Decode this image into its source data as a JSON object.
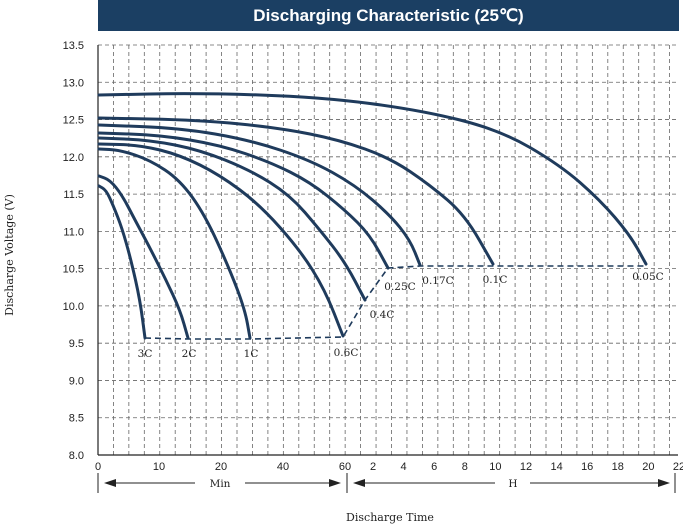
{
  "colors": {
    "title_bg": "#1b3f63",
    "curve": "#1f3b5c",
    "grid": "#666666"
  },
  "chart_data": {
    "type": "line",
    "title": "Discharging Characteristic (25℃)",
    "ylabel": "Discharge Voltage (V)",
    "xlabel": "Discharge Time",
    "ylim": [
      8.0,
      13.5
    ],
    "y_ticks": [
      "13.5",
      "13.0",
      "12.5",
      "12.0",
      "11.5",
      "11.0",
      "10.5",
      "10.0",
      "9.5",
      "9.0",
      "8.5",
      "8.0"
    ],
    "x_ticks_min": [
      "0",
      "10",
      "20",
      "40",
      "60"
    ],
    "x_ticks_h": [
      "2",
      "4",
      "6",
      "8",
      "10",
      "12",
      "14",
      "16",
      "18",
      "20",
      "22"
    ],
    "x_segment_labels": {
      "min": "Min",
      "hour": "H"
    },
    "grid": true,
    "series": [
      {
        "name": "3C",
        "points": [
          [
            0,
            11.62
          ],
          [
            1,
            11.6
          ],
          [
            2,
            11.4
          ],
          [
            3,
            11.0
          ],
          [
            4,
            10.3
          ],
          [
            5,
            9.7
          ],
          [
            6,
            9.57
          ]
        ]
      },
      {
        "name": "2C",
        "points": [
          [
            0,
            11.75
          ],
          [
            2,
            11.65
          ],
          [
            4,
            11.35
          ],
          [
            6,
            11.0
          ],
          [
            8,
            10.6
          ],
          [
            10,
            10.1
          ],
          [
            11,
            9.8
          ],
          [
            12,
            9.57
          ]
        ]
      },
      {
        "name": "1C",
        "points": [
          [
            0,
            12.1
          ],
          [
            5,
            12.05
          ],
          [
            10,
            11.8
          ],
          [
            15,
            11.3
          ],
          [
            20,
            10.7
          ],
          [
            25,
            10.1
          ],
          [
            28,
            9.57
          ]
        ]
      },
      {
        "name": "0.6C",
        "points": [
          [
            0,
            12.18
          ],
          [
            10,
            12.1
          ],
          [
            20,
            11.8
          ],
          [
            30,
            11.3
          ],
          [
            40,
            10.8
          ],
          [
            50,
            10.2
          ],
          [
            60,
            9.57
          ]
        ]
      },
      {
        "name": "0.4C",
        "points": [
          [
            0,
            12.22
          ],
          [
            0.5,
            12.1
          ],
          [
            1,
            11.9
          ],
          [
            1.5,
            11.6
          ],
          [
            2,
            11.0
          ],
          [
            2.5,
            10.4
          ],
          [
            3,
            10.0
          ]
        ]
      },
      {
        "name": "0.25C",
        "points": [
          [
            0,
            12.27
          ],
          [
            1,
            12.05
          ],
          [
            2,
            11.7
          ],
          [
            3,
            11.2
          ],
          [
            4,
            10.55
          ]
        ]
      },
      {
        "name": "0.17C",
        "points": [
          [
            0,
            12.33
          ],
          [
            1,
            12.2
          ],
          [
            2,
            12.0
          ],
          [
            3,
            11.7
          ],
          [
            4,
            11.3
          ],
          [
            5,
            10.85
          ],
          [
            6,
            10.55
          ]
        ]
      },
      {
        "name": "0.1C",
        "points": [
          [
            0,
            12.52
          ],
          [
            2,
            12.45
          ],
          [
            4,
            12.25
          ],
          [
            6,
            11.9
          ],
          [
            8,
            11.4
          ],
          [
            10,
            10.55
          ]
        ]
      },
      {
        "name": "0.05C",
        "points": [
          [
            0,
            12.83
          ],
          [
            5,
            12.8
          ],
          [
            10,
            12.6
          ],
          [
            14,
            12.3
          ],
          [
            17,
            11.6
          ],
          [
            19,
            11.0
          ],
          [
            20,
            10.55
          ]
        ]
      }
    ],
    "cutoff_lines": [
      {
        "name": "min-cutoff",
        "voltage": 9.57
      },
      {
        "name": "hour-cutoff",
        "voltage": 10.5
      }
    ]
  }
}
